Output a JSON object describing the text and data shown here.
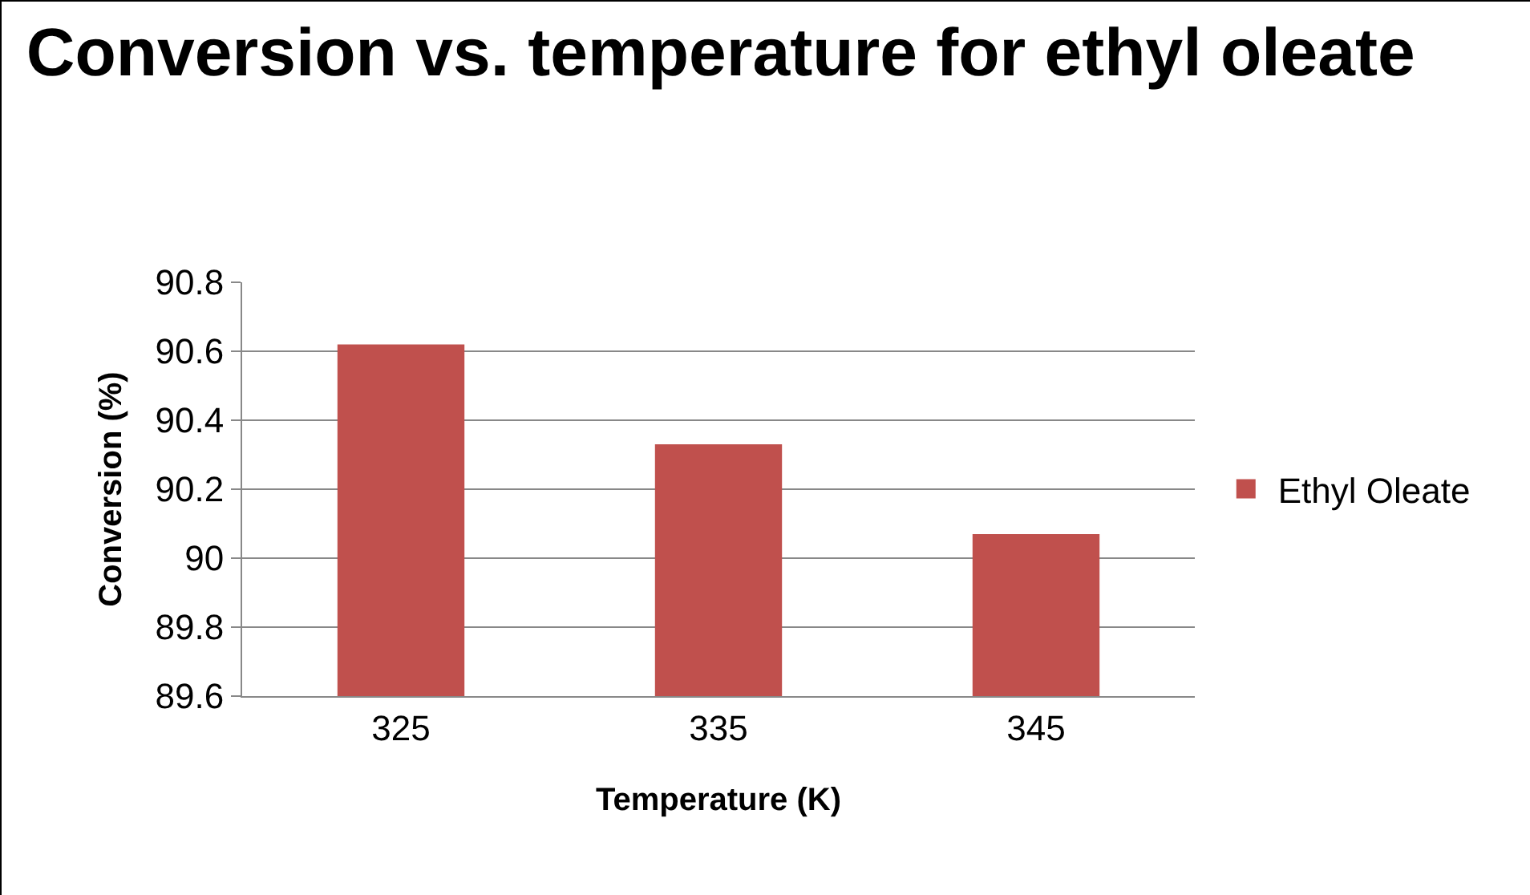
{
  "chart_data": {
    "type": "bar",
    "title": "Conversion vs. temperature for ethyl oleate",
    "xlabel": "Temperature (K)",
    "ylabel": "Conversion (%)",
    "categories": [
      "325",
      "335",
      "345"
    ],
    "series": [
      {
        "name": "Ethyl Oleate",
        "color": "#c0504d",
        "values": [
          90.62,
          90.33,
          90.07
        ]
      }
    ],
    "ylim": [
      89.6,
      90.8
    ],
    "yticks": [
      89.6,
      89.8,
      90,
      90.2,
      90.4,
      90.6,
      90.8
    ],
    "grid": "y",
    "legend": "right"
  }
}
